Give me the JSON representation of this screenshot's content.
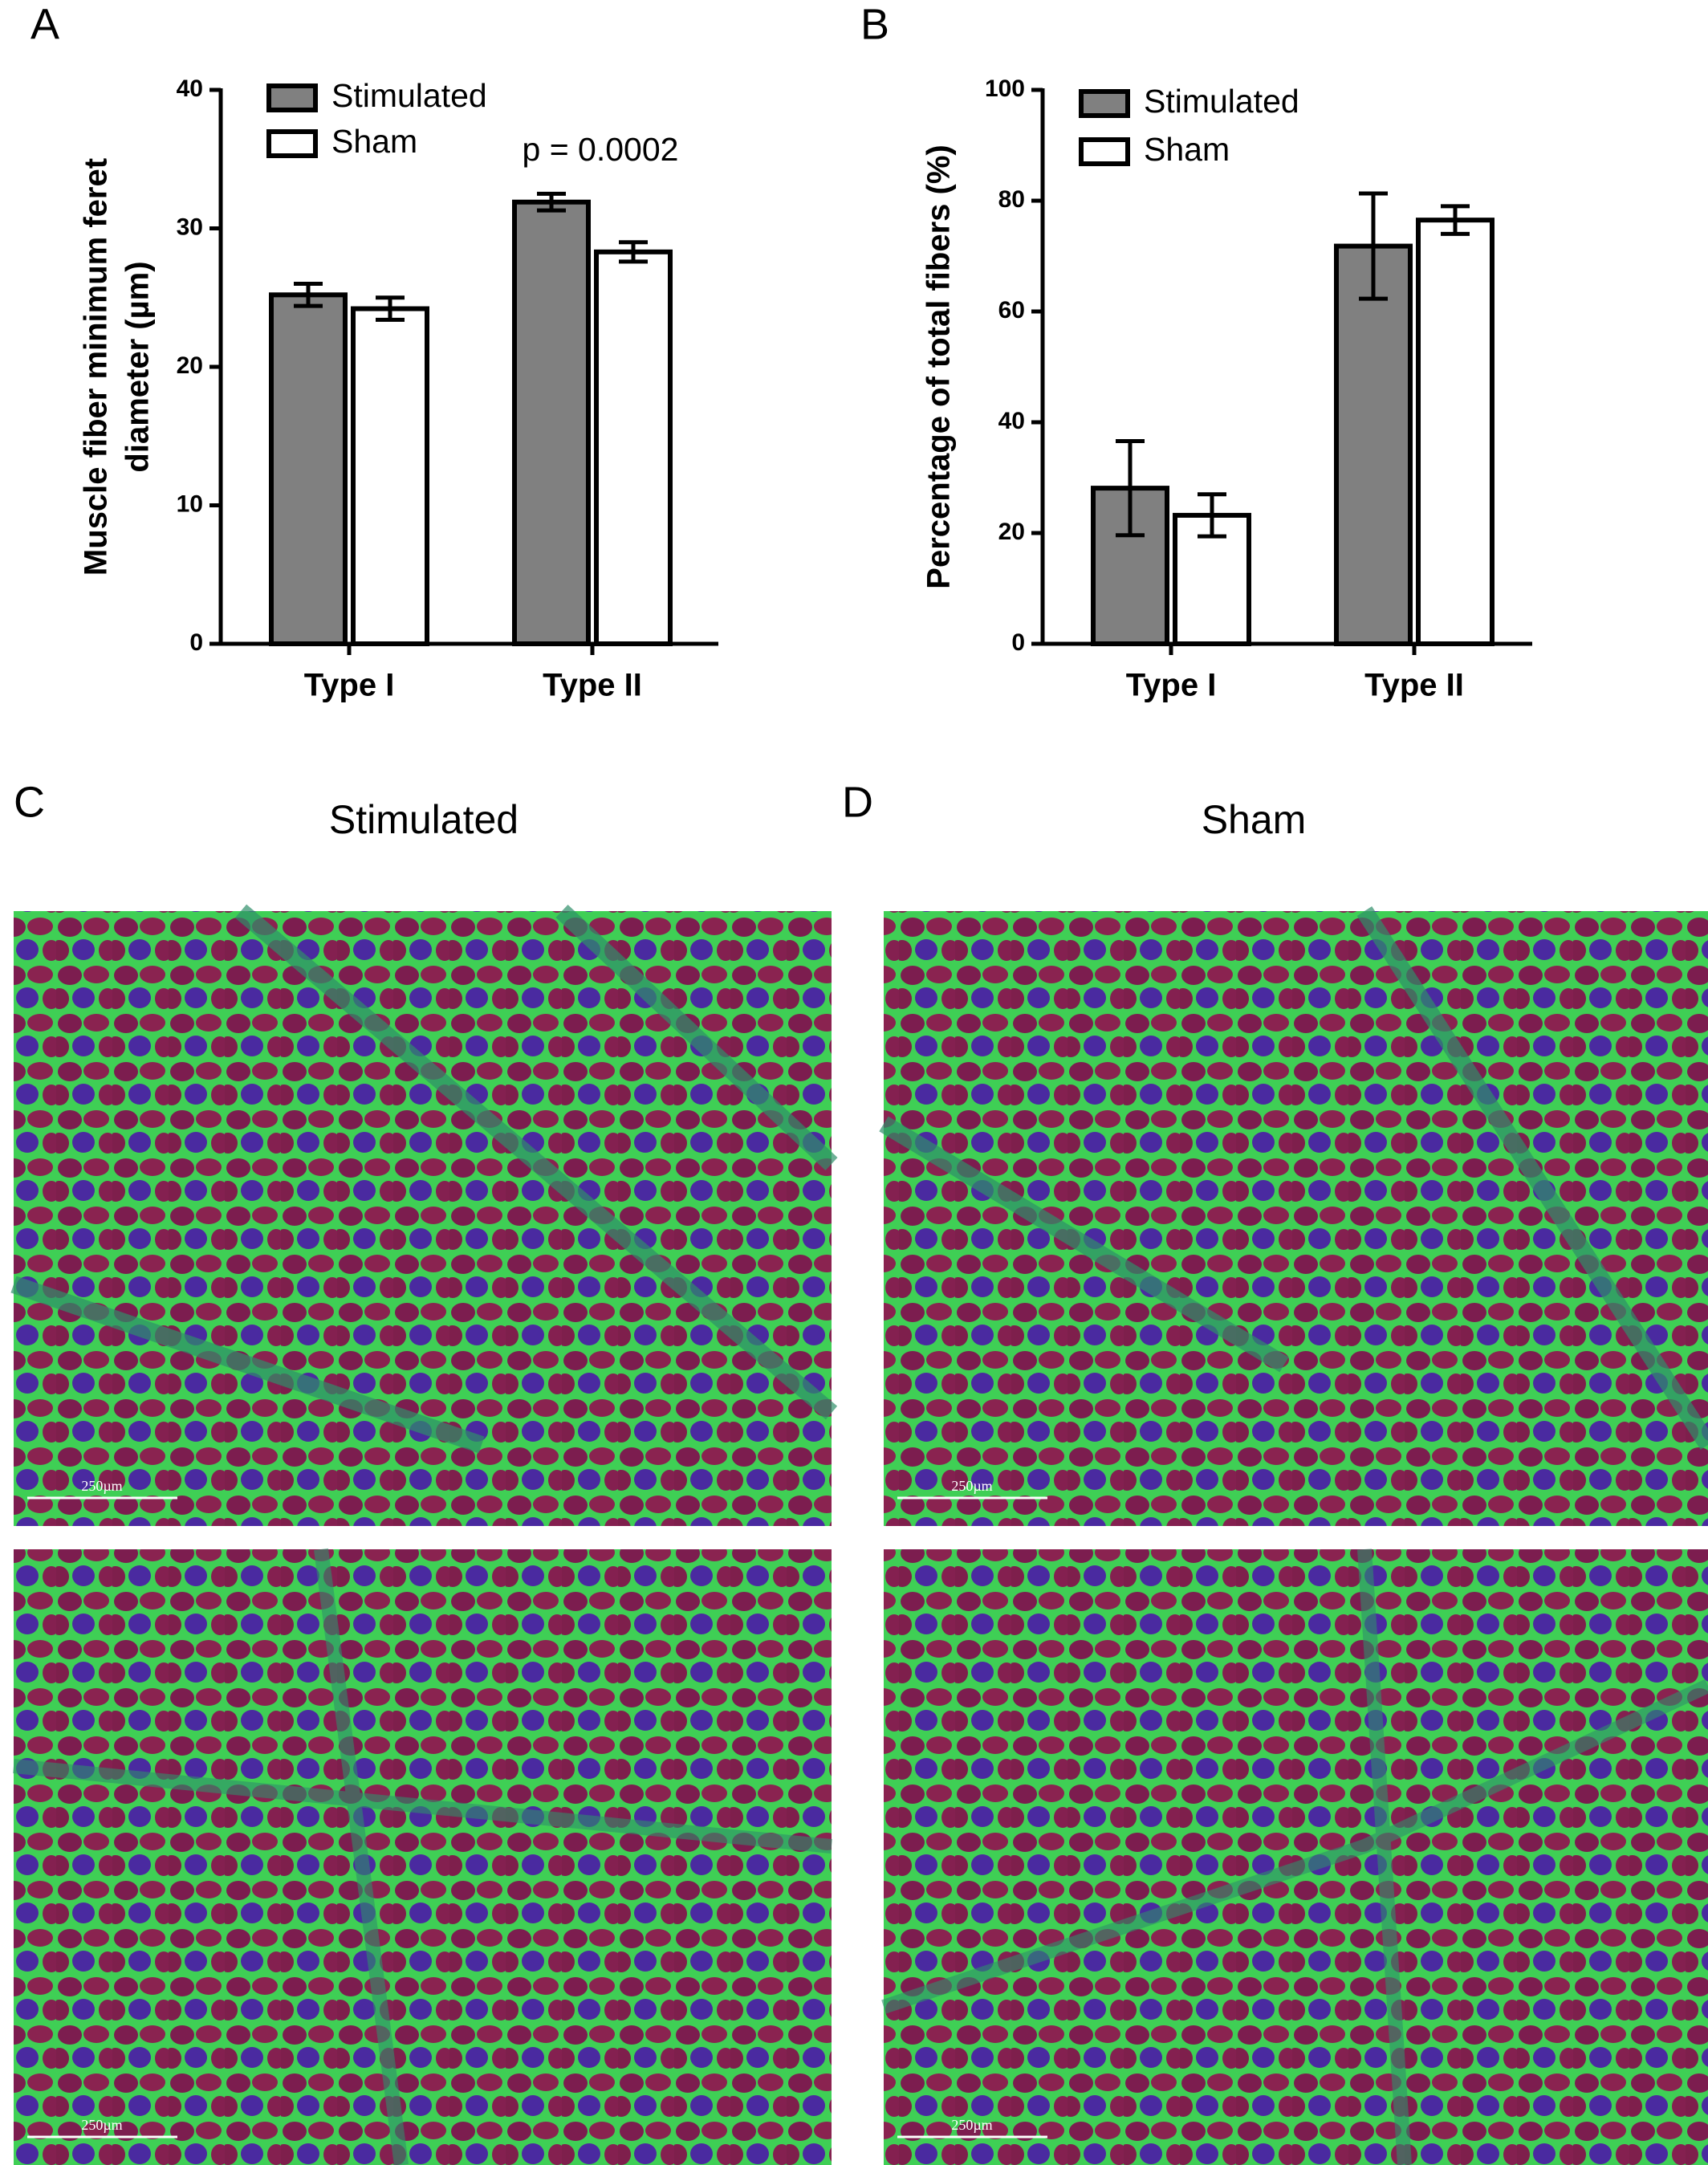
{
  "panels": {
    "labels": [
      "A",
      "B",
      "C",
      "D"
    ],
    "headings": [
      "Stimulated",
      "Sham"
    ],
    "scale_bar": "250µm"
  },
  "chart_data": [
    {
      "type": "bar",
      "ylabel": [
        "Muscle fiber minimum feret",
        "diameter (µm)"
      ],
      "categories": [
        "Type I",
        "Type II"
      ],
      "series": [
        {
          "name": "Stimulated",
          "color": "#808080",
          "values": [
            25.2,
            31.9
          ],
          "errors": [
            0.8,
            0.6
          ]
        },
        {
          "name": "Sham",
          "color": "#ffffff",
          "values": [
            24.2,
            28.3
          ],
          "errors": [
            0.8,
            0.7
          ]
        }
      ],
      "annotation": "p = 0.0002",
      "ylim": [
        0,
        40
      ],
      "yticks": [
        0,
        10,
        20,
        30,
        40
      ],
      "grid": false
    },
    {
      "type": "bar",
      "ylabel": [
        "Percentage of total fibers (%)"
      ],
      "categories": [
        "Type I",
        "Type II"
      ],
      "series": [
        {
          "name": "Stimulated",
          "color": "#808080",
          "values": [
            28.1,
            71.8
          ],
          "errors": [
            8.5,
            9.5
          ]
        },
        {
          "name": "Sham",
          "color": "#ffffff",
          "values": [
            23.2,
            76.5
          ],
          "errors": [
            3.8,
            2.5
          ]
        }
      ],
      "ylim": [
        0,
        100
      ],
      "yticks": [
        0,
        20,
        40,
        60,
        80,
        100
      ],
      "grid": false
    }
  ]
}
